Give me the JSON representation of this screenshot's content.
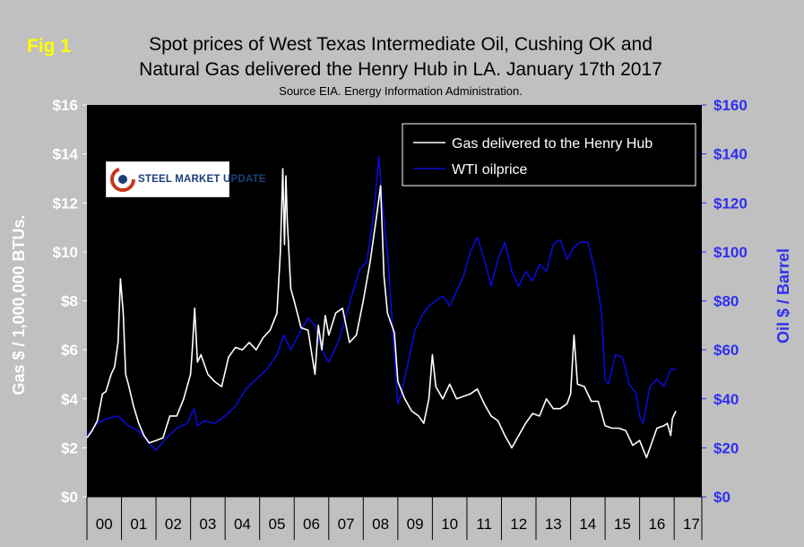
{
  "fig_label": "Fig 1",
  "title_line1": "Spot prices of West Texas Intermediate Oil, Cushing OK and",
  "title_line2": "Natural Gas delivered the Henry Hub in LA. January 17th 2017",
  "source": "Source EIA. Energy Information Administration.",
  "logo_text": "STEEL MARKET UPDATE",
  "colors": {
    "background": "#c0c0c0",
    "plot": "#000000",
    "gas": "#ffffff",
    "oil": "#0b0bd6",
    "right_axis": "#2f2ff0",
    "fig_label": "#ffff00"
  },
  "chart_data": {
    "type": "line",
    "xlabel": "",
    "ylabel_left": "Gas $ / 1,000,000 BTUs.",
    "ylabel_right": "Oil $ / Barrel",
    "xlim": [
      2000,
      2017.8
    ],
    "ylim_left": [
      0,
      16
    ],
    "ylim_right": [
      0,
      160
    ],
    "left_ticks": [
      "$0",
      "$2",
      "$4",
      "$6",
      "$8",
      "$10",
      "$12",
      "$14",
      "$16"
    ],
    "right_ticks": [
      "$0",
      "$20",
      "$40",
      "$60",
      "$80",
      "$100",
      "$120",
      "$140",
      "$160"
    ],
    "x_tick_labels": [
      "00",
      "01",
      "02",
      "03",
      "04",
      "05",
      "06",
      "07",
      "08",
      "09",
      "10",
      "11",
      "12",
      "13",
      "14",
      "15",
      "16",
      "17"
    ],
    "grid": false,
    "legend_position": "top-right",
    "series": [
      {
        "name": "Gas delivered to the Henry Hub",
        "axis": "left",
        "x": [
          2000.0,
          2000.15,
          2000.3,
          2000.45,
          2000.55,
          2000.7,
          2000.8,
          2000.9,
          2000.97,
          2001.05,
          2001.12,
          2001.2,
          2001.35,
          2001.5,
          2001.65,
          2001.8,
          2002.0,
          2002.2,
          2002.4,
          2002.6,
          2002.8,
          2003.0,
          2003.05,
          2003.12,
          2003.2,
          2003.3,
          2003.5,
          2003.7,
          2003.9,
          2004.1,
          2004.3,
          2004.5,
          2004.7,
          2004.9,
          2005.1,
          2005.3,
          2005.5,
          2005.6,
          2005.67,
          2005.72,
          2005.76,
          2005.8,
          2005.9,
          2006.0,
          2006.2,
          2006.4,
          2006.6,
          2006.7,
          2006.8,
          2006.9,
          2007.0,
          2007.2,
          2007.4,
          2007.6,
          2007.8,
          2008.0,
          2008.2,
          2008.4,
          2008.5,
          2008.6,
          2008.7,
          2008.9,
          2009.0,
          2009.2,
          2009.4,
          2009.6,
          2009.75,
          2009.9,
          2010.0,
          2010.1,
          2010.3,
          2010.5,
          2010.7,
          2010.9,
          2011.1,
          2011.3,
          2011.5,
          2011.7,
          2011.9,
          2012.1,
          2012.3,
          2012.5,
          2012.7,
          2012.9,
          2013.1,
          2013.3,
          2013.5,
          2013.7,
          2013.9,
          2014.0,
          2014.1,
          2014.2,
          2014.4,
          2014.6,
          2014.8,
          2015.0,
          2015.2,
          2015.4,
          2015.6,
          2015.8,
          2016.0,
          2016.2,
          2016.3,
          2016.5,
          2016.7,
          2016.8,
          2016.9,
          2016.95,
          2017.05
        ],
        "values": [
          2.4,
          2.7,
          3.1,
          4.2,
          4.3,
          5.0,
          5.3,
          6.3,
          8.9,
          7.5,
          5.0,
          4.6,
          3.7,
          3.0,
          2.5,
          2.2,
          2.3,
          2.4,
          3.3,
          3.3,
          4.0,
          5.0,
          6.0,
          7.7,
          5.5,
          5.8,
          5.0,
          4.7,
          4.5,
          5.7,
          6.1,
          6.0,
          6.3,
          6.0,
          6.5,
          6.8,
          7.5,
          10.0,
          13.4,
          10.3,
          13.1,
          11.3,
          8.5,
          8.0,
          6.9,
          6.8,
          5.0,
          7.0,
          6.0,
          7.4,
          6.6,
          7.5,
          7.7,
          6.3,
          6.6,
          8.0,
          9.6,
          11.6,
          12.7,
          9.0,
          7.5,
          6.7,
          4.7,
          4.0,
          3.5,
          3.3,
          3.0,
          4.0,
          5.8,
          4.5,
          4.0,
          4.6,
          4.0,
          4.1,
          4.2,
          4.4,
          3.8,
          3.3,
          3.1,
          2.5,
          2.0,
          2.5,
          3.0,
          3.4,
          3.3,
          4.0,
          3.6,
          3.6,
          3.8,
          4.2,
          6.6,
          4.6,
          4.5,
          3.9,
          3.9,
          2.9,
          2.8,
          2.8,
          2.7,
          2.1,
          2.3,
          1.6,
          2.0,
          2.8,
          2.9,
          3.0,
          2.5,
          3.2,
          3.5
        ]
      },
      {
        "name": "WTI oilprice",
        "axis": "right",
        "x": [
          2000.0,
          2000.3,
          2000.6,
          2000.9,
          2001.2,
          2001.5,
          2001.8,
          2002.0,
          2002.3,
          2002.6,
          2002.9,
          2003.0,
          2003.1,
          2003.2,
          2003.4,
          2003.7,
          2004.0,
          2004.3,
          2004.6,
          2004.9,
          2005.2,
          2005.5,
          2005.7,
          2005.9,
          2006.2,
          2006.4,
          2006.6,
          2006.8,
          2007.0,
          2007.3,
          2007.6,
          2007.9,
          2008.1,
          2008.3,
          2008.45,
          2008.55,
          2008.7,
          2008.85,
          2009.0,
          2009.1,
          2009.3,
          2009.5,
          2009.7,
          2009.9,
          2010.1,
          2010.3,
          2010.5,
          2010.7,
          2010.9,
          2011.1,
          2011.3,
          2011.5,
          2011.7,
          2011.9,
          2012.1,
          2012.3,
          2012.5,
          2012.7,
          2012.9,
          2013.1,
          2013.3,
          2013.5,
          2013.7,
          2013.9,
          2014.1,
          2014.3,
          2014.5,
          2014.7,
          2014.9,
          2015.0,
          2015.1,
          2015.3,
          2015.5,
          2015.7,
          2015.9,
          2016.0,
          2016.1,
          2016.3,
          2016.5,
          2016.7,
          2016.9,
          2017.05
        ],
        "values": [
          25,
          30,
          32,
          33,
          29,
          27,
          22,
          19,
          24,
          28,
          30,
          33,
          36,
          29,
          31,
          30,
          33,
          37,
          44,
          48,
          52,
          58,
          66,
          60,
          68,
          73,
          70,
          60,
          55,
          64,
          79,
          93,
          96,
          115,
          139,
          120,
          100,
          68,
          38,
          42,
          55,
          68,
          74,
          78,
          80,
          82,
          78,
          84,
          90,
          100,
          106,
          97,
          86,
          97,
          104,
          92,
          86,
          92,
          88,
          95,
          92,
          103,
          105,
          97,
          102,
          104,
          104,
          93,
          75,
          48,
          46,
          58,
          57,
          46,
          42,
          33,
          30,
          45,
          48,
          45,
          52,
          52
        ]
      }
    ]
  }
}
